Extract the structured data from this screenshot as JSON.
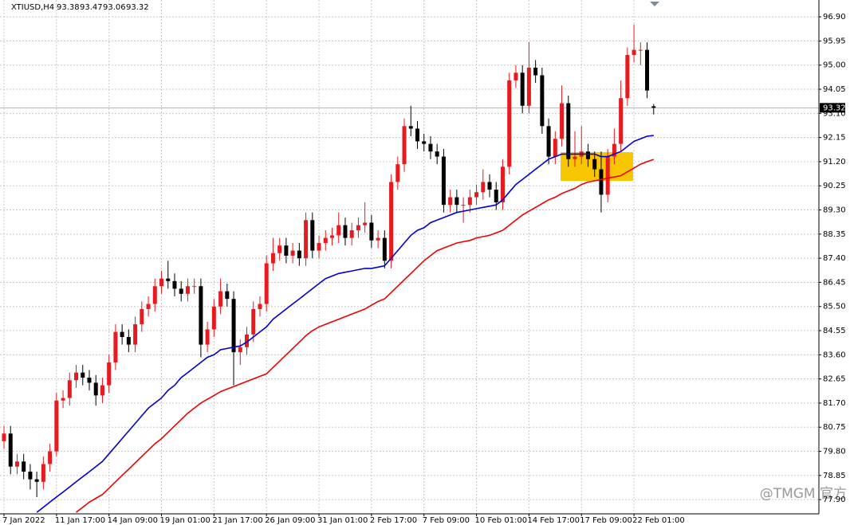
{
  "chart_data": {
    "type": "candlestick",
    "symbol": "XTIUSD,H4",
    "watermark": "@TMGM 官方",
    "categories": [
      "7 Jan 2022",
      null,
      null,
      null,
      null,
      null,
      null,
      null,
      "11 Jan 17:00",
      null,
      null,
      null,
      null,
      null,
      null,
      null,
      "14 Jan 09:00",
      null,
      null,
      null,
      null,
      null,
      null,
      null,
      "19 Jan 01:00",
      null,
      null,
      null,
      null,
      null,
      null,
      null,
      "21 Jan 17:00",
      null,
      null,
      null,
      null,
      null,
      null,
      null,
      "26 Jan 09:00",
      null,
      null,
      null,
      null,
      null,
      null,
      null,
      "31 Jan 01:00",
      null,
      null,
      null,
      null,
      null,
      null,
      null,
      "2 Feb 17:00",
      null,
      null,
      null,
      null,
      null,
      null,
      null,
      "7 Feb 09:00",
      null,
      null,
      null,
      null,
      null,
      null,
      null,
      "10 Feb 01:00",
      null,
      null,
      null,
      null,
      null,
      null,
      null,
      "14 Feb 17:00",
      null,
      null,
      null,
      null,
      null,
      null,
      null,
      "17 Feb 09:00",
      null,
      null,
      null,
      null,
      null,
      null,
      null,
      "22 Feb 01:00",
      null,
      null,
      null
    ],
    "open": [
      80.2,
      80.5,
      79.2,
      79.4,
      79.0,
      78.7,
      78.6,
      79.3,
      79.8,
      81.8,
      81.9,
      82.6,
      82.9,
      82.7,
      82.5,
      82.0,
      82.4,
      83.3,
      84.5,
      84.3,
      84.0,
      84.8,
      85.4,
      85.6,
      86.3,
      86.6,
      86.5,
      86.2,
      86.0,
      86.3,
      86.3,
      84.0,
      84.6,
      85.5,
      86.1,
      85.8,
      83.7,
      83.9,
      84.4,
      85.4,
      85.6,
      87.2,
      87.6,
      87.9,
      87.5,
      87.7,
      87.4,
      88.9,
      87.7,
      88.0,
      88.2,
      88.3,
      88.7,
      88.2,
      88.5,
      88.7,
      88.8,
      88.1,
      88.2,
      87.3,
      90.4,
      91.1,
      92.6,
      92.5,
      92.0,
      91.9,
      91.6,
      91.4,
      89.5,
      89.8,
      89.5,
      89.5,
      89.8,
      90.0,
      90.4,
      90.1,
      89.6,
      91.0,
      94.4,
      94.7,
      93.4,
      94.9,
      94.6,
      92.6,
      91.4,
      92.1,
      93.5,
      91.3,
      91.4,
      91.6,
      91.3,
      90.9,
      89.9,
      91.4,
      91.9,
      93.7,
      95.4,
      95.6,
      95.6,
      93.38
    ],
    "high": [
      80.8,
      80.8,
      79.7,
      79.7,
      79.3,
      79.0,
      79.6,
      80.1,
      82.1,
      82.2,
      82.9,
      83.2,
      83.2,
      83.0,
      82.8,
      82.7,
      83.6,
      84.8,
      84.8,
      84.6,
      85.1,
      85.7,
      85.9,
      86.6,
      86.9,
      87.3,
      86.8,
      86.5,
      86.6,
      86.6,
      86.6,
      84.9,
      85.8,
      86.6,
      86.4,
      86.1,
      84.2,
      84.7,
      85.7,
      85.9,
      87.5,
      88.2,
      88.2,
      88.2,
      88.0,
      88.0,
      89.2,
      89.2,
      88.3,
      88.5,
      88.6,
      89.2,
      89.0,
      88.8,
      89.0,
      89.6,
      89.1,
      88.5,
      88.5,
      90.7,
      91.4,
      92.9,
      93.4,
      92.8,
      92.3,
      92.2,
      91.9,
      91.7,
      90.1,
      90.1,
      89.8,
      90.1,
      90.3,
      90.9,
      90.7,
      90.4,
      91.3,
      94.7,
      95.0,
      95.0,
      95.9,
      95.2,
      94.9,
      92.9,
      92.4,
      94.2,
      93.8,
      92.4,
      92.6,
      91.9,
      91.6,
      91.6,
      91.7,
      92.5,
      94.4,
      95.7,
      96.6,
      95.9,
      95.9,
      93.47
    ],
    "low": [
      79.9,
      78.9,
      78.9,
      78.7,
      78.3,
      78.0,
      78.3,
      79.0,
      79.6,
      81.5,
      81.6,
      82.3,
      82.4,
      82.2,
      81.6,
      81.7,
      82.1,
      83.0,
      84.0,
      83.7,
      83.7,
      84.5,
      85.1,
      85.3,
      86.0,
      86.2,
      85.9,
      85.7,
      85.7,
      86.0,
      83.5,
      83.7,
      84.3,
      85.2,
      85.5,
      82.4,
      83.2,
      83.6,
      84.1,
      85.1,
      85.3,
      86.9,
      87.3,
      87.2,
      87.2,
      87.1,
      87.1,
      87.4,
      87.4,
      87.7,
      87.9,
      88.0,
      87.9,
      87.9,
      88.2,
      88.4,
      87.8,
      87.8,
      87.0,
      87.0,
      90.1,
      90.8,
      92.2,
      91.7,
      91.6,
      91.3,
      91.1,
      89.2,
      89.2,
      89.2,
      88.8,
      89.2,
      89.5,
      89.7,
      89.8,
      89.3,
      89.3,
      90.7,
      94.1,
      93.1,
      93.1,
      94.3,
      92.3,
      91.1,
      91.1,
      91.8,
      91.0,
      91.0,
      91.1,
      91.0,
      90.6,
      89.2,
      89.6,
      91.1,
      91.6,
      93.4,
      95.1,
      95.0,
      93.7,
      93.06
    ],
    "close": [
      80.5,
      79.2,
      79.4,
      79.0,
      78.7,
      78.6,
      79.3,
      79.8,
      81.8,
      81.9,
      82.6,
      82.9,
      82.7,
      82.5,
      82.0,
      82.4,
      83.3,
      84.5,
      84.3,
      84.0,
      84.8,
      85.4,
      85.6,
      86.3,
      86.6,
      86.5,
      86.2,
      86.0,
      86.3,
      86.3,
      84.0,
      84.6,
      85.5,
      86.1,
      85.8,
      83.7,
      83.9,
      84.4,
      85.4,
      85.6,
      87.2,
      87.6,
      87.9,
      87.5,
      87.7,
      87.4,
      88.9,
      87.7,
      88.0,
      88.2,
      88.3,
      88.7,
      88.2,
      88.5,
      88.7,
      88.8,
      88.1,
      88.2,
      87.3,
      90.4,
      91.1,
      92.6,
      92.5,
      92.0,
      91.9,
      91.6,
      91.4,
      89.5,
      89.8,
      89.5,
      89.5,
      89.8,
      90.0,
      90.4,
      90.1,
      89.6,
      91.0,
      94.4,
      94.7,
      93.4,
      94.9,
      94.6,
      92.6,
      91.4,
      92.1,
      93.5,
      91.3,
      91.4,
      91.6,
      91.3,
      90.9,
      89.9,
      91.4,
      91.9,
      93.7,
      95.4,
      95.6,
      95.6,
      94.0,
      93.32
    ],
    "up_color": "#e8191f",
    "down_color": "#000000",
    "ma_lines": [
      {
        "color": "#0000cc",
        "values": [
          null,
          null,
          null,
          null,
          null,
          77.4,
          77.6,
          77.8,
          78.0,
          78.2,
          78.4,
          78.6,
          78.8,
          79.0,
          79.2,
          79.4,
          79.7,
          80.0,
          80.3,
          80.6,
          80.9,
          81.2,
          81.5,
          81.7,
          81.9,
          82.2,
          82.4,
          82.7,
          82.9,
          83.1,
          83.3,
          83.5,
          83.6,
          83.8,
          83.85,
          83.9,
          83.95,
          84.1,
          84.3,
          84.5,
          84.7,
          85.0,
          85.2,
          85.4,
          85.6,
          85.8,
          86.0,
          86.2,
          86.4,
          86.6,
          86.7,
          86.8,
          86.85,
          86.9,
          86.95,
          87.0,
          87.0,
          87.05,
          87.1,
          87.4,
          87.7,
          88.0,
          88.3,
          88.5,
          88.6,
          88.8,
          88.9,
          89.0,
          89.1,
          89.2,
          89.25,
          89.3,
          89.35,
          89.4,
          89.45,
          89.5,
          89.7,
          90.0,
          90.3,
          90.5,
          90.7,
          90.9,
          91.1,
          91.3,
          91.4,
          91.5,
          91.5,
          91.5,
          91.5,
          91.5,
          91.5,
          91.4,
          91.4,
          91.5,
          91.6,
          91.8,
          92.0,
          92.1,
          92.2,
          92.23
        ]
      },
      {
        "color": "#ee0000",
        "values": [
          null,
          null,
          null,
          null,
          null,
          null,
          null,
          null,
          null,
          null,
          null,
          77.4,
          77.6,
          77.8,
          77.95,
          78.1,
          78.35,
          78.6,
          78.85,
          79.1,
          79.35,
          79.6,
          79.85,
          80.1,
          80.3,
          80.55,
          80.8,
          81.05,
          81.3,
          81.5,
          81.7,
          81.85,
          82.0,
          82.15,
          82.25,
          82.35,
          82.45,
          82.55,
          82.65,
          82.75,
          82.85,
          83.1,
          83.35,
          83.6,
          83.85,
          84.1,
          84.35,
          84.55,
          84.7,
          84.8,
          84.9,
          85.0,
          85.1,
          85.2,
          85.3,
          85.4,
          85.55,
          85.7,
          85.8,
          86.05,
          86.3,
          86.55,
          86.8,
          87.05,
          87.3,
          87.5,
          87.7,
          87.8,
          87.9,
          88.0,
          88.05,
          88.1,
          88.2,
          88.25,
          88.3,
          88.4,
          88.5,
          88.7,
          88.9,
          89.1,
          89.25,
          89.4,
          89.55,
          89.7,
          89.8,
          89.95,
          90.05,
          90.15,
          90.3,
          90.4,
          90.45,
          90.5,
          90.55,
          90.6,
          90.65,
          90.8,
          90.95,
          91.1,
          91.2,
          91.29
        ]
      }
    ],
    "ylim": [
      77.34,
      97.5
    ],
    "yticks": [
      {
        "value": 77.9,
        "label": "77.90"
      },
      78.85,
      {
        "value": 79.8,
        "label": "79.80"
      },
      {
        "value": 80.75,
        "label": "80.75"
      },
      {
        "value": 81.7,
        "label": "81.70"
      },
      {
        "value": 82.65,
        "label": "82.65"
      },
      {
        "value": 83.6,
        "label": "83.60"
      },
      84.55,
      {
        "value": 85.5,
        "label": "85.50"
      },
      {
        "value": 86.45,
        "label": "86.45"
      },
      {
        "value": 87.4,
        "label": "87.40"
      },
      88.35,
      {
        "value": 89.3,
        "label": "89.30"
      },
      {
        "value": 90.25,
        "label": "90.25"
      },
      {
        "value": 91.2,
        "label": "91.20"
      },
      {
        "value": 92.15,
        "label": "92.15"
      },
      {
        "value": 93.1,
        "label": "93.10"
      },
      {
        "value": 94.05,
        "label": "94.05"
      },
      {
        "value": 95,
        "label": "95.00"
      },
      95.95,
      {
        "value": 96.9,
        "label": "96.90"
      }
    ],
    "grid": true
  }
}
